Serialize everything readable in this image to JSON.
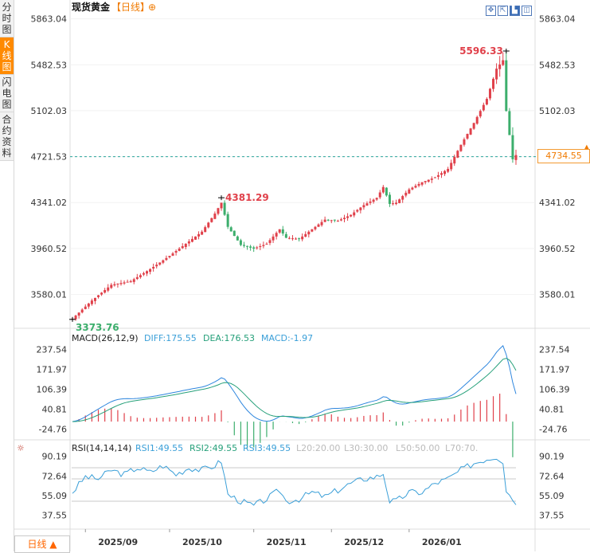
{
  "sidebar": {
    "tabs": [
      {
        "label": "分时图",
        "active": false
      },
      {
        "label": "K线图",
        "active": true
      },
      {
        "label": "闪电图",
        "active": false
      },
      {
        "label": "合约资料",
        "active": false
      }
    ]
  },
  "header": {
    "title": "现货黄金",
    "period": "【日线】",
    "add_symbol": "⊕"
  },
  "toolbar": {
    "icons": [
      "crosshair-icon",
      "move-icon",
      "candle-mode-icon",
      "settings-icon"
    ],
    "glyphs": [
      "✥",
      "⇱",
      "▙",
      "◫"
    ]
  },
  "bottom": {
    "period_button": "日线 ▲",
    "x_ticks": [
      "2025/09",
      "2025/10",
      "2025/11",
      "2025/12",
      "2026/01"
    ]
  },
  "colors": {
    "up": "#e0404a",
    "down": "#3cae6c",
    "ma_blue": "#2e86de",
    "ma_green": "#26a07a",
    "accent": "#f07a00",
    "rsi": "#3a9fd8"
  },
  "chart_data": [
    {
      "type": "candlestick",
      "title": "现货黄金 日线",
      "ylim": [
        3300,
        5900
      ],
      "y_ticks": [
        "5863.04",
        "5482.53",
        "5102.03",
        "4721.53",
        "4341.02",
        "3960.52",
        "3580.01"
      ],
      "y_tick_values": [
        5863.04,
        5482.53,
        5102.03,
        4721.53,
        4341.02,
        3960.52,
        3580.01
      ],
      "current_price": "4734.55",
      "current_price_value": 4734.55,
      "dashed_line_value": 4721.53,
      "annotations": [
        {
          "label": "5596.33",
          "value": 5596.33,
          "index": 134
        },
        {
          "label": "4381.29",
          "value": 4381.29,
          "index": 46
        },
        {
          "label": "3373.76",
          "value": 3373.76,
          "index": 0
        }
      ],
      "count": 138,
      "month_start_index": {
        "2025/09": 4,
        "2025/10": 30,
        "2025/11": 56,
        "2025/12": 80,
        "2026/01": 104
      },
      "anchors": [
        [
          0,
          3380
        ],
        [
          6,
          3530
        ],
        [
          12,
          3660
        ],
        [
          18,
          3690
        ],
        [
          24,
          3790
        ],
        [
          30,
          3900
        ],
        [
          36,
          4020
        ],
        [
          40,
          4100
        ],
        [
          44,
          4250
        ],
        [
          46,
          4340
        ],
        [
          48,
          4140
        ],
        [
          52,
          3990
        ],
        [
          56,
          3960
        ],
        [
          60,
          4000
        ],
        [
          64,
          4120
        ],
        [
          66,
          4050
        ],
        [
          70,
          4040
        ],
        [
          74,
          4120
        ],
        [
          78,
          4200
        ],
        [
          82,
          4190
        ],
        [
          86,
          4240
        ],
        [
          90,
          4320
        ],
        [
          94,
          4380
        ],
        [
          96,
          4470
        ],
        [
          98,
          4330
        ],
        [
          100,
          4340
        ],
        [
          104,
          4450
        ],
        [
          108,
          4510
        ],
        [
          112,
          4550
        ],
        [
          116,
          4620
        ],
        [
          120,
          4820
        ],
        [
          124,
          5000
        ],
        [
          128,
          5200
        ],
        [
          131,
          5450
        ],
        [
          133,
          5520
        ],
        [
          134,
          5100
        ],
        [
          135,
          4900
        ],
        [
          136,
          4700
        ],
        [
          137,
          4734.55
        ]
      ]
    },
    {
      "type": "macd",
      "title": "MACD(26,12,9)",
      "diff_label": "DIFF:175.55",
      "dea_label": "DEA:176.53",
      "macd_label": "MACD:-1.97",
      "diff": 175.55,
      "dea": 176.53,
      "macd": -1.97,
      "ylim": [
        -60,
        265
      ],
      "y_ticks": [
        "237.54",
        "171.97",
        "106.39",
        "40.81",
        "-24.76"
      ],
      "y_tick_values": [
        237.54,
        171.97,
        106.39,
        40.81,
        -24.76
      ]
    },
    {
      "type": "rsi",
      "title": "RSI(14,14,14)",
      "rsi1_label": "RSI1:49.55",
      "rsi2_label": "RSI2:49.55",
      "rsi3_label": "RSI3:49.55",
      "l20": "L20:20.00",
      "l30": "L30:30.00",
      "l50": "L50:50.00",
      "l70": "L70:70.",
      "ylim": [
        25,
        95
      ],
      "y_ticks": [
        "90.19",
        "72.64",
        "55.09",
        "37.55"
      ],
      "y_tick_values": [
        90.19,
        72.64,
        55.09,
        37.55
      ],
      "level_lines": [
        80,
        70,
        50
      ],
      "anchors": [
        [
          0,
          58
        ],
        [
          4,
          72
        ],
        [
          8,
          70
        ],
        [
          12,
          78
        ],
        [
          16,
          74
        ],
        [
          20,
          80
        ],
        [
          24,
          76
        ],
        [
          28,
          82
        ],
        [
          32,
          74
        ],
        [
          36,
          80
        ],
        [
          40,
          78
        ],
        [
          44,
          82
        ],
        [
          46,
          86
        ],
        [
          48,
          56
        ],
        [
          52,
          50
        ],
        [
          56,
          46
        ],
        [
          60,
          52
        ],
        [
          64,
          60
        ],
        [
          66,
          50
        ],
        [
          70,
          52
        ],
        [
          74,
          58
        ],
        [
          78,
          54
        ],
        [
          82,
          60
        ],
        [
          86,
          66
        ],
        [
          90,
          70
        ],
        [
          94,
          72
        ],
        [
          96,
          75
        ],
        [
          98,
          50
        ],
        [
          100,
          50
        ],
        [
          104,
          58
        ],
        [
          108,
          58
        ],
        [
          112,
          66
        ],
        [
          116,
          70
        ],
        [
          120,
          78
        ],
        [
          124,
          84
        ],
        [
          128,
          88
        ],
        [
          131,
          90
        ],
        [
          133,
          86
        ],
        [
          134,
          60
        ],
        [
          136,
          52
        ],
        [
          137,
          49.55
        ]
      ]
    }
  ]
}
